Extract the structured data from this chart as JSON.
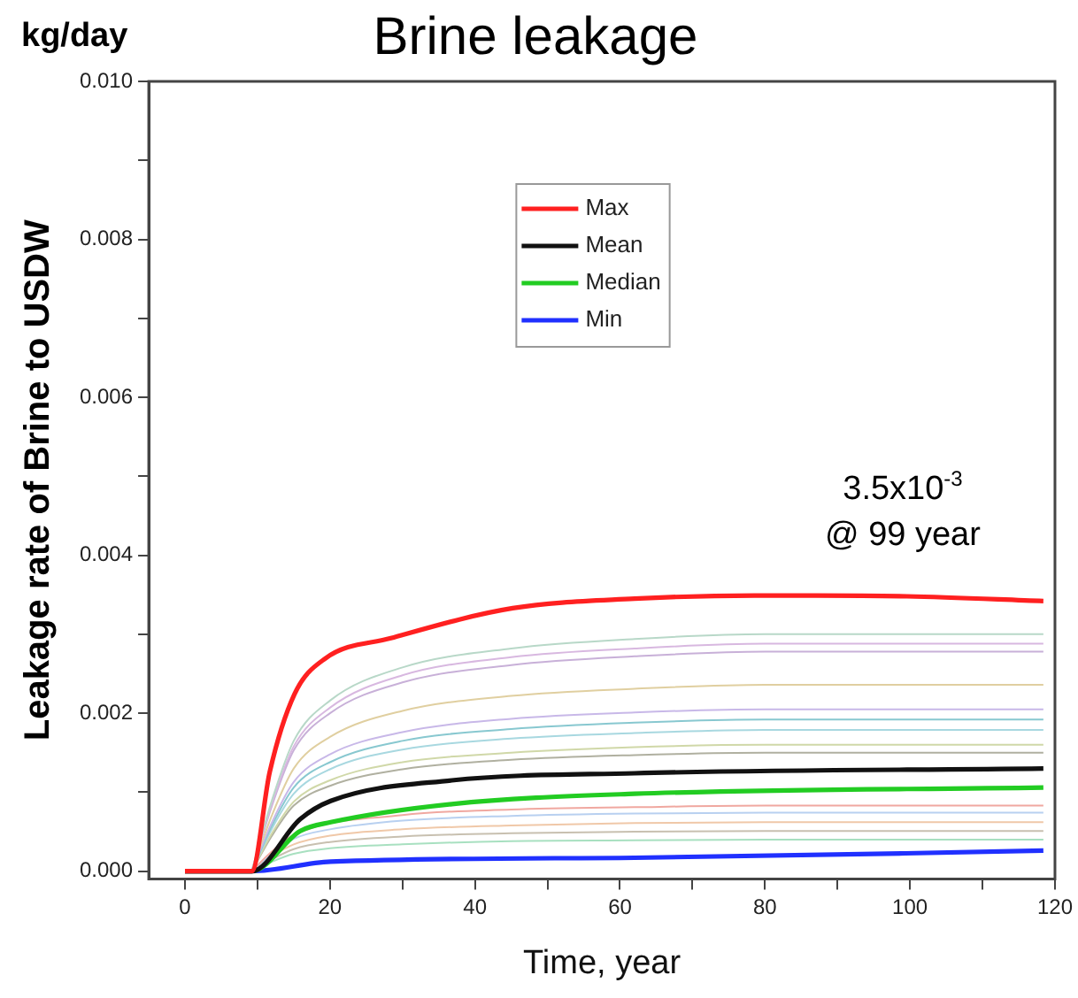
{
  "chart_data": {
    "type": "line",
    "title": "Brine leakage",
    "xlabel": "Time, year",
    "ylabel": "Leakage rate of Brine to USDW",
    "annotations": [
      "kg/day",
      {
        "text": "3.5x10$^{-3}$",
        "x": 99,
        "y": 0.0035
      },
      {
        "text": "@ 99 year",
        "x": 99,
        "y": 0.0035
      }
    ],
    "x": [
      9.2,
      12,
      15,
      20,
      30,
      45,
      62,
      80,
      100,
      118.4
    ],
    "xlim": [
      -5,
      120
    ],
    "xticks": [
      0,
      {
        "value": 10,
        "label": null
      },
      20,
      {
        "value": 30,
        "label": null
      },
      40,
      {
        "value": 50,
        "label": null
      },
      60,
      {
        "value": 70,
        "label": null
      },
      80,
      {
        "value": 90,
        "label": null
      },
      100,
      {
        "value": 110,
        "label": null
      },
      120
    ],
    "ylim": [
      -0.0001,
      0.01
    ],
    "yticks": [
      {
        "value": 0,
        "label": "0.000"
      },
      {
        "value": 0.001,
        "label": null
      },
      {
        "value": 0.002,
        "label": "0.002"
      },
      {
        "value": 0.003,
        "label": null
      },
      {
        "value": 0.004,
        "label": "0.004"
      },
      {
        "value": 0.005,
        "label": null
      },
      {
        "value": 0.006,
        "label": "0.006"
      },
      {
        "value": 0.007,
        "label": null
      },
      {
        "value": 0.008,
        "label": "0.008"
      },
      {
        "value": 0.009,
        "label": null
      },
      {
        "value": 0.01,
        "label": "0.010"
      }
    ],
    "legend": "top",
    "marker": "none",
    "line_style": "solid",
    "series": [
      {
        "color": "#b8d8c8",
        "values": [
          0,
          0.0009,
          0.00165,
          0.00216,
          0.00258,
          0.00282,
          0.00294,
          0.003,
          0.003,
          0.003
        ]
      },
      {
        "color": "#d8b8e0",
        "values": [
          0,
          0.00086,
          0.00158,
          0.00207,
          0.00248,
          0.00271,
          0.00282,
          0.00288,
          0.00288,
          0.00288
        ]
      },
      {
        "color": "#c8b0d8",
        "values": [
          0,
          0.00083,
          0.00153,
          0.002,
          0.00239,
          0.00261,
          0.00272,
          0.00278,
          0.00278,
          0.00278
        ]
      },
      {
        "color": "#e0cfa0",
        "values": [
          0,
          0.00071,
          0.0013,
          0.0017,
          0.00203,
          0.00222,
          0.00231,
          0.00236,
          0.00236,
          0.00236
        ]
      },
      {
        "color": "#c8b8e8",
        "values": [
          0,
          0.00062,
          0.00113,
          0.00148,
          0.00176,
          0.00193,
          0.00201,
          0.00205,
          0.00205,
          0.00205
        ]
      },
      {
        "color": "#88c8d0",
        "values": [
          0,
          0.00058,
          0.00106,
          0.00138,
          0.00165,
          0.0018,
          0.00188,
          0.00192,
          0.00192,
          0.00192
        ]
      },
      {
        "color": "#a8d8e0",
        "values": [
          0,
          0.00054,
          0.00098,
          0.00129,
          0.00154,
          0.00168,
          0.00175,
          0.00179,
          0.00179,
          0.00179
        ]
      },
      {
        "color": "#d0d8a8",
        "values": [
          0,
          0.00048,
          0.00088,
          0.00115,
          0.00138,
          0.0015,
          0.00157,
          0.0016,
          0.0016,
          0.0016
        ]
      },
      {
        "color": "#b0b0a0",
        "values": [
          0,
          0.00045,
          0.00083,
          0.00108,
          0.00129,
          0.00141,
          0.00147,
          0.0015,
          0.0015,
          0.0015
        ]
      },
      {
        "color": "#f0a8a0",
        "values": [
          0,
          0.00025,
          0.00046,
          null,
          0.00071,
          0.00078,
          0.00081,
          0.00083,
          0.00083,
          0.00083
        ]
      },
      {
        "color": "#b8d0f0",
        "values": [
          0,
          0.00022,
          0.00041,
          0.00053,
          0.00064,
          0.0007,
          0.00073,
          0.00074,
          0.00074,
          0.00074
        ]
      },
      {
        "color": "#f0c8a8",
        "values": [
          0,
          0.00019,
          0.00034,
          0.00045,
          0.00053,
          0.00058,
          0.00061,
          0.00062,
          0.00062,
          0.00062
        ]
      },
      {
        "color": "#c8c0b0",
        "values": [
          0,
          0.00015,
          0.00028,
          0.00037,
          0.00044,
          0.00048,
          0.0005,
          0.00051,
          0.00051,
          0.00051
        ]
      },
      {
        "color": "#a8e0c0",
        "values": [
          0,
          0.00012,
          0.00022,
          0.00029,
          0.00034,
          0.00038,
          0.00039,
          0.0004,
          0.0004,
          0.0004
        ]
      },
      {
        "name": "Max",
        "color": "#ff2020",
        "x": [
          0,
          9.2,
          11.7,
          15.1,
          19.3,
          28.4,
          45.2,
          62,
          78.6,
          87,
          99.6,
          118.4
        ],
        "values": [
          0,
          0,
          0.00126,
          0.00224,
          0.00269,
          0.00295,
          0.00333,
          0.00345,
          0.00349,
          0.00349,
          0.00348,
          0.00342
        ]
      },
      {
        "name": "Mean",
        "color": "#111111",
        "x": [
          0,
          9.2,
          15.9,
          20.1,
          36.8,
          62,
          118.4
        ],
        "values": [
          0,
          0,
          0.00066,
          0.00089,
          0.00115,
          0.00124,
          0.0013
        ]
      },
      {
        "name": "Median",
        "color": "#22cc22",
        "x": [
          0,
          9.2,
          15.9,
          20.1,
          36.8,
          62,
          118.4
        ],
        "values": [
          0,
          0,
          0.00051,
          0.00062,
          0.00085,
          0.00098,
          0.00106
        ]
      },
      {
        "name": "Min",
        "color": "#2030ff",
        "x": [
          0,
          9.2,
          20.1,
          62,
          118.4
        ],
        "values": [
          0,
          0,
          0.00012,
          0.00017,
          0.00026
        ]
      }
    ]
  }
}
